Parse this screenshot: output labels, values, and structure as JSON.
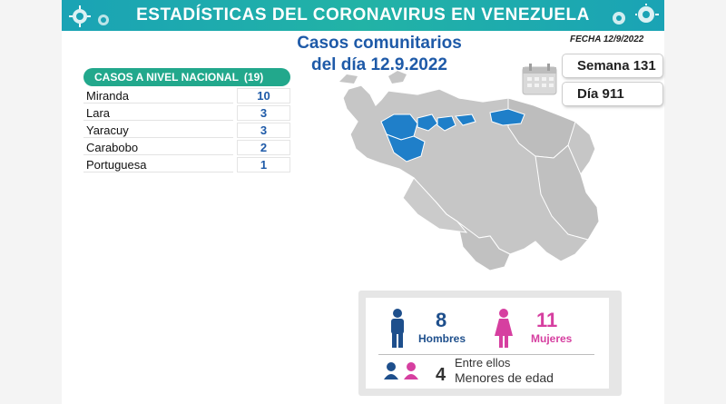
{
  "banner": {
    "title": "ESTADÍSTICAS DEL CORONAVIRUS EN VENEZUELA"
  },
  "subtitle": {
    "line1": "Casos comunitarios",
    "line2": "del día 12.9.2022"
  },
  "fecha": "FECHA 12/9/2022",
  "semana": "Semana 131",
  "dia": "Día 911",
  "table": {
    "header": "CASOS A NIVEL NACIONAL",
    "total": "(19)",
    "rows": [
      {
        "state": "Miranda",
        "cases": "10"
      },
      {
        "state": "Lara",
        "cases": "3"
      },
      {
        "state": "Yaracuy",
        "cases": "3"
      },
      {
        "state": "Carabobo",
        "cases": "2"
      },
      {
        "state": "Portuguesa",
        "cases": "1"
      }
    ]
  },
  "stats": {
    "men_count": "8",
    "men_label": "Hombres",
    "women_count": "11",
    "women_label": "Mujeres",
    "among_label": "Entre ellos",
    "minors_count": "4",
    "minors_label": "Menores de edad"
  },
  "colors": {
    "banner": "#1aa3b5",
    "highlight_state": "#1f7fc9",
    "map_gray": "#c4c4c4",
    "men": "#1e4f8c",
    "women": "#d63fa0",
    "table_header": "#22a88c"
  }
}
